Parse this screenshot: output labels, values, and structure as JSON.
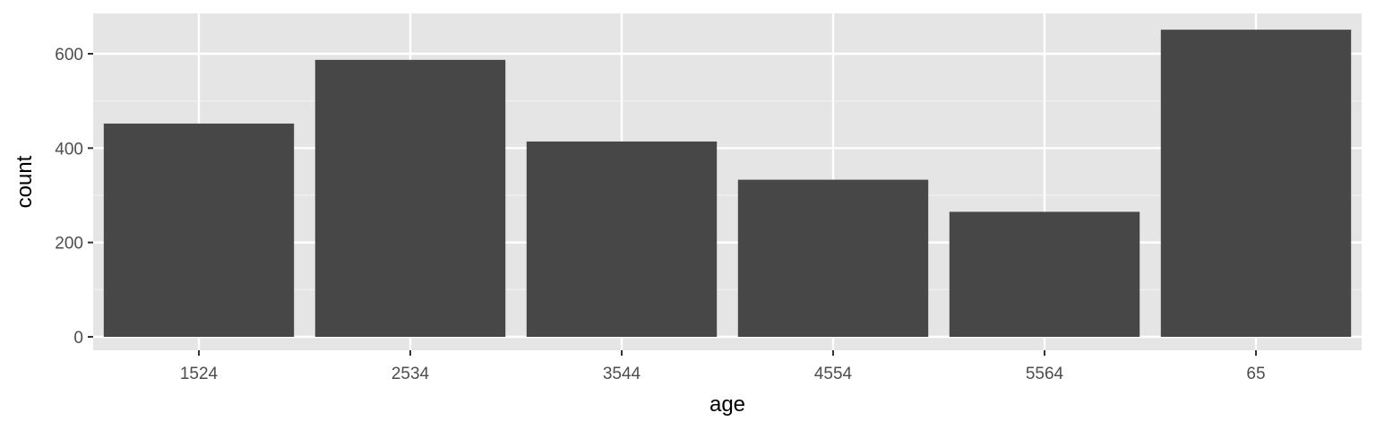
{
  "chart_data": {
    "type": "bar",
    "categories": [
      "1524",
      "2534",
      "3544",
      "4554",
      "5564",
      "65"
    ],
    "values": [
      452,
      587,
      414,
      333,
      265,
      651
    ],
    "xlabel": "age",
    "ylabel": "count",
    "ylim": [
      0,
      685
    ],
    "yticks": [
      0,
      200,
      400,
      600
    ],
    "grid": true,
    "colors": {
      "bar": "#474747",
      "panel": "#e5e5e5",
      "grid_major": "#ffffff",
      "grid_minor": "#f2f2f2",
      "tick": "#333333",
      "tick_label": "#4d4d4d"
    }
  }
}
